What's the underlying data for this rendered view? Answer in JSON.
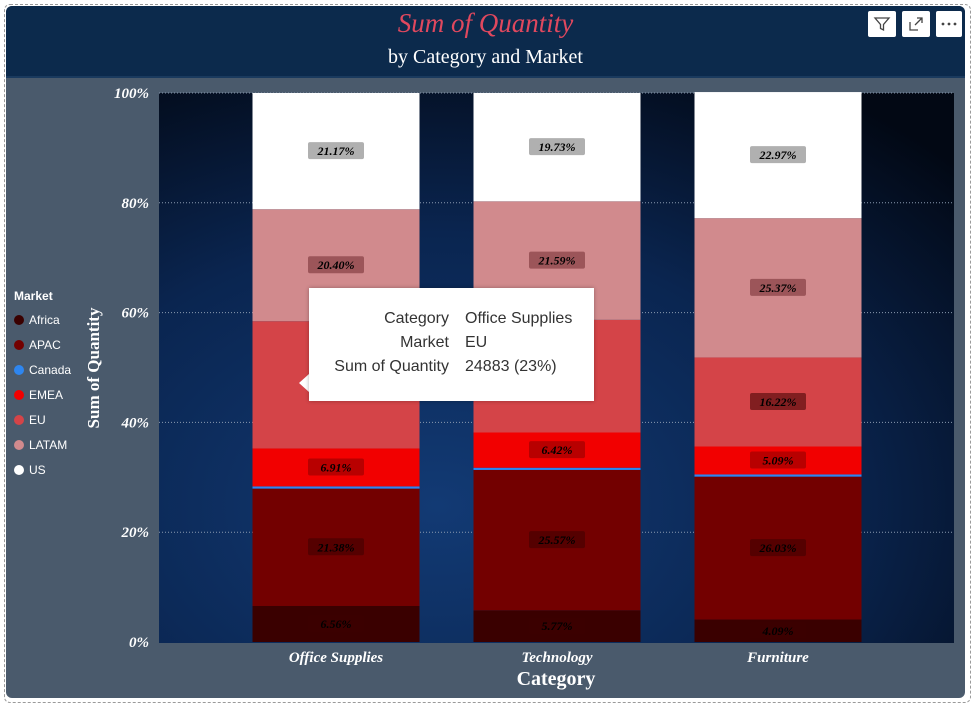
{
  "header": {
    "title": "Sum of Quantity",
    "subtitle": "by Category and Market"
  },
  "toolbar_icons": [
    "filter-icon",
    "focus-mode-icon",
    "more-options-icon"
  ],
  "legend": {
    "title": "Market",
    "items": [
      {
        "label": "Africa",
        "color": "#3a0000"
      },
      {
        "label": "APAC",
        "color": "#730000"
      },
      {
        "label": "Canada",
        "color": "#2e86f0"
      },
      {
        "label": "EMEA",
        "color": "#f20000"
      },
      {
        "label": "EU",
        "color": "#d44448"
      },
      {
        "label": "LATAM",
        "color": "#d18a8d"
      },
      {
        "label": "US",
        "color": "#ffffff"
      }
    ]
  },
  "tooltip": {
    "rows": [
      {
        "key": "Category",
        "value": "Office Supplies"
      },
      {
        "key": "Market",
        "value": "EU"
      },
      {
        "key": "Sum of Quantity",
        "value": "24883 (23%)"
      }
    ]
  },
  "chart_data": {
    "type": "bar",
    "stacked": "100%",
    "title": "Sum of Quantity",
    "subtitle": "by Category and Market",
    "xlabel": "Category",
    "ylabel": "Sum of Quantity",
    "ylim": [
      0,
      100
    ],
    "yticks": [
      "0%",
      "20%",
      "40%",
      "60%",
      "80%",
      "100%"
    ],
    "grid": true,
    "legend_position": "left",
    "categories": [
      "Office Supplies",
      "Technology",
      "Furniture"
    ],
    "series": [
      {
        "name": "Africa",
        "color": "#3a0000",
        "values": [
          6.56,
          5.77,
          4.09
        ],
        "labels": [
          "6.56%",
          "5.77%",
          "4.09%"
        ]
      },
      {
        "name": "APAC",
        "color": "#730000",
        "values": [
          21.38,
          25.57,
          26.03
        ],
        "labels": [
          "21.38%",
          "25.57%",
          "26.03%"
        ]
      },
      {
        "name": "Canada",
        "color": "#2e86f0",
        "values": [
          0.4,
          0.4,
          0.4
        ],
        "labels": [
          "",
          "",
          ""
        ]
      },
      {
        "name": "EMEA",
        "color": "#f20000",
        "values": [
          6.91,
          6.42,
          5.09
        ],
        "labels": [
          "6.91%",
          "6.42%",
          "5.09%"
        ]
      },
      {
        "name": "EU",
        "color": "#d44448",
        "values": [
          23.18,
          20.52,
          16.22
        ],
        "labels": [
          "",
          "",
          "16.22%"
        ]
      },
      {
        "name": "LATAM",
        "color": "#d18a8d",
        "values": [
          20.4,
          21.59,
          25.37
        ],
        "labels": [
          "20.40%",
          "21.59%",
          "25.37%"
        ]
      },
      {
        "name": "US",
        "color": "#ffffff",
        "values": [
          21.17,
          19.73,
          22.97
        ],
        "labels": [
          "21.17%",
          "19.73%",
          "22.97%"
        ]
      }
    ]
  }
}
